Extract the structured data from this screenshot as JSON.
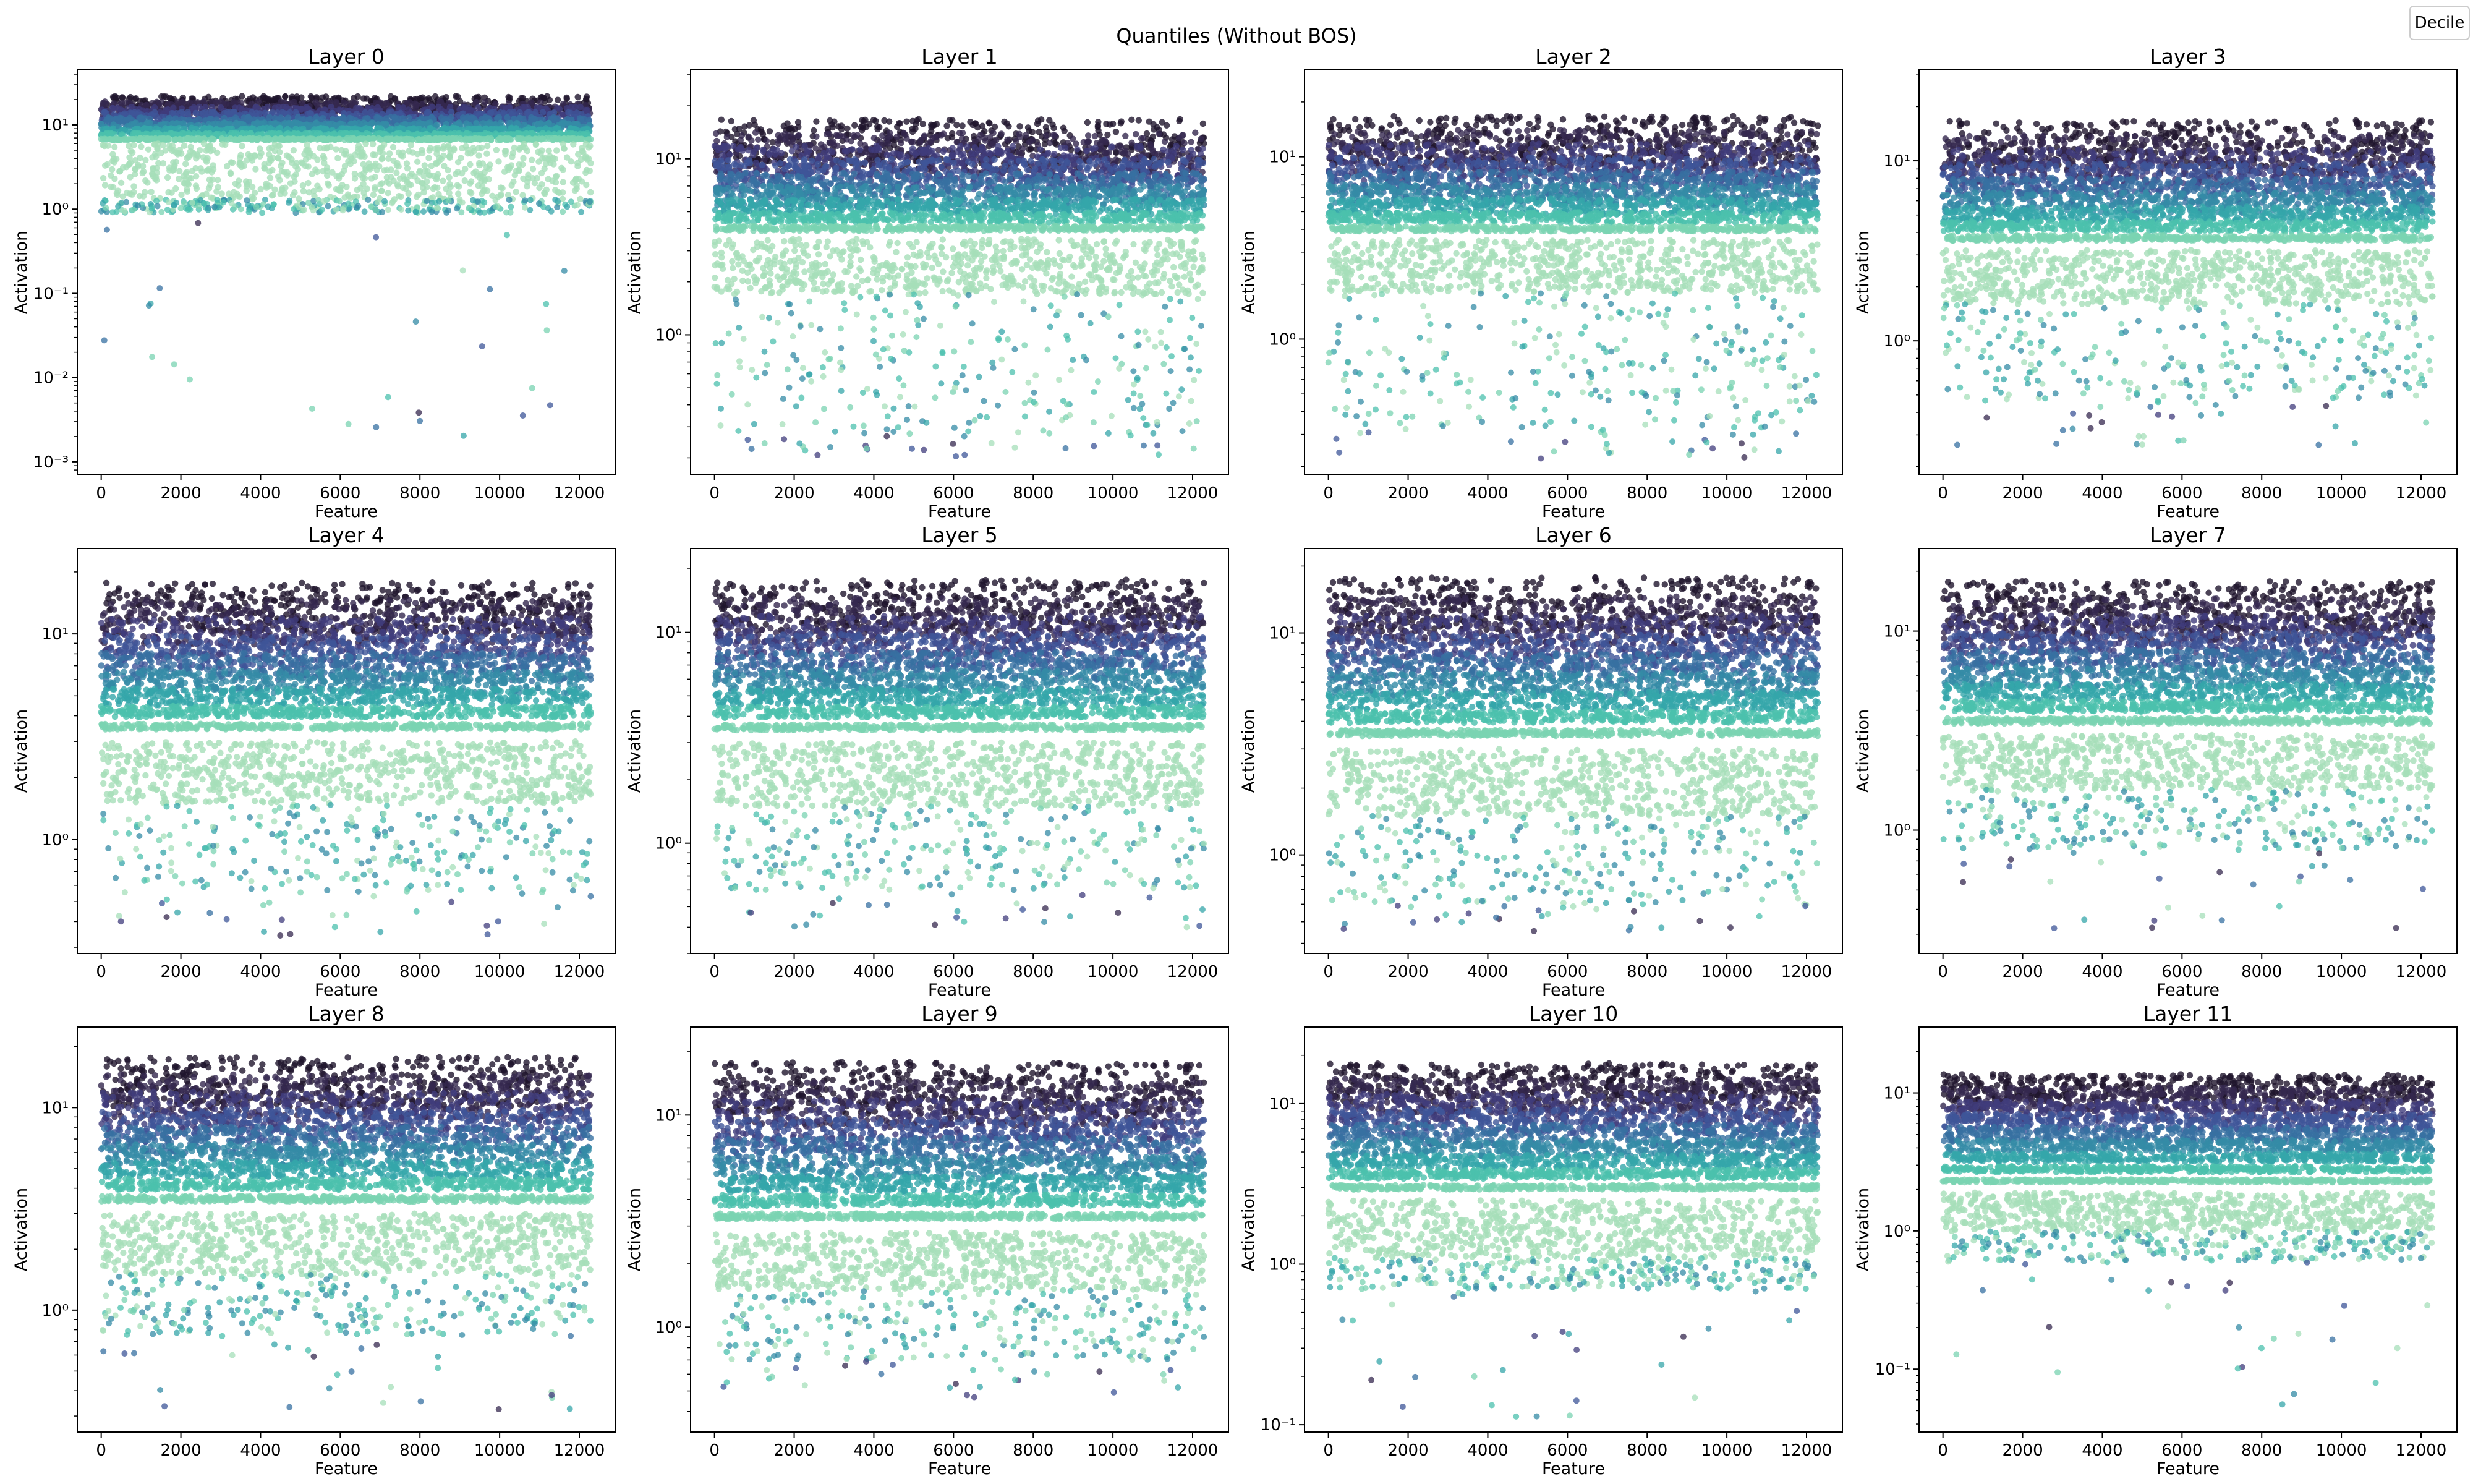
{
  "chart_data": {
    "type": "scatter",
    "suptitle": "Quantiles (Without BOS)",
    "legend": {
      "title": "Decile",
      "placement": "top-right"
    },
    "xlabel": "Feature",
    "ylabel": "Activation",
    "xscale": "linear",
    "yscale": "log",
    "n_features": 12288,
    "xlim": [
      -600,
      12900
    ],
    "x_ticks": [
      0,
      2000,
      4000,
      6000,
      8000,
      10000,
      12000
    ],
    "x_tick_labels": [
      "0",
      "2000",
      "4000",
      "6000",
      "8000",
      "10000",
      "12000"
    ],
    "decile_colors": [
      "#a6dfb9",
      "#7ad3b1",
      "#4bc0ad",
      "#35a6aa",
      "#348ba6",
      "#3770a1",
      "#3e5598",
      "#403c7c",
      "#35284f",
      "#1f152d"
    ],
    "panels": [
      {
        "title": "Layer 0",
        "ylim": [
          0.0007,
          45
        ],
        "y_ticks": [
          0.001,
          0.01,
          0.1,
          1,
          10
        ],
        "y_tick_labels": [
          "10⁻³",
          "10⁻²",
          "10⁻¹",
          "10⁰",
          "10¹"
        ],
        "band_lo": 1.3,
        "band_hi": 6,
        "top_lo": 16,
        "top_hi": 24,
        "bottom_lo": 0.9,
        "outlier_floor": 0.002
      },
      {
        "title": "Layer 1",
        "ylim": [
          0.16,
          32
        ],
        "y_ticks": [
          1,
          10
        ],
        "y_tick_labels": [
          "10⁰",
          "10¹"
        ],
        "band_lo": 1.7,
        "band_hi": 3.5,
        "top_lo": 11,
        "top_hi": 19,
        "bottom_lo": 0.27,
        "outlier_floor": 0.2
      },
      {
        "title": "Layer 2",
        "ylim": [
          0.18,
          30
        ],
        "y_ticks": [
          1,
          10
        ],
        "y_tick_labels": [
          "10⁰",
          "10¹"
        ],
        "band_lo": 1.8,
        "band_hi": 3.5,
        "top_lo": 11,
        "top_hi": 19,
        "bottom_lo": 0.32,
        "outlier_floor": 0.22
      },
      {
        "title": "Layer 3",
        "ylim": [
          0.18,
          32
        ],
        "y_ticks": [
          1,
          10
        ],
        "y_tick_labels": [
          "10⁰",
          "10¹"
        ],
        "band_lo": 1.6,
        "band_hi": 3.2,
        "top_lo": 11,
        "top_hi": 19,
        "bottom_lo": 0.45,
        "outlier_floor": 0.26
      },
      {
        "title": "Layer 4",
        "ylim": [
          0.28,
          26
        ],
        "y_ticks": [
          1,
          10
        ],
        "y_tick_labels": [
          "10⁰",
          "10¹"
        ],
        "band_lo": 1.5,
        "band_hi": 3.0,
        "top_lo": 12,
        "top_hi": 20,
        "bottom_lo": 0.55,
        "outlier_floor": 0.34
      },
      {
        "title": "Layer 5",
        "ylim": [
          0.3,
          25
        ],
        "y_ticks": [
          1,
          10
        ],
        "y_tick_labels": [
          "10⁰",
          "10¹"
        ],
        "band_lo": 1.5,
        "band_hi": 3.0,
        "top_lo": 12,
        "top_hi": 20,
        "bottom_lo": 0.6,
        "outlier_floor": 0.4
      },
      {
        "title": "Layer 6",
        "ylim": [
          0.36,
          24
        ],
        "y_ticks": [
          1,
          10
        ],
        "y_tick_labels": [
          "10⁰",
          "10¹"
        ],
        "band_lo": 1.5,
        "band_hi": 3.0,
        "top_lo": 12,
        "top_hi": 20,
        "bottom_lo": 0.6,
        "outlier_floor": 0.45
      },
      {
        "title": "Layer 7",
        "ylim": [
          0.24,
          26
        ],
        "y_ticks": [
          1,
          10
        ],
        "y_tick_labels": [
          "10⁰",
          "10¹"
        ],
        "band_lo": 1.6,
        "band_hi": 3.0,
        "top_lo": 12,
        "top_hi": 20,
        "bottom_lo": 0.8,
        "outlier_floor": 0.32
      },
      {
        "title": "Layer 8",
        "ylim": [
          0.25,
          25
        ],
        "y_ticks": [
          1,
          10
        ],
        "y_tick_labels": [
          "10⁰",
          "10¹"
        ],
        "band_lo": 1.5,
        "band_hi": 3.0,
        "top_lo": 12,
        "top_hi": 20,
        "bottom_lo": 0.75,
        "outlier_floor": 0.3
      },
      {
        "title": "Layer 9",
        "ylim": [
          0.32,
          26
        ],
        "y_ticks": [
          1,
          10
        ],
        "y_tick_labels": [
          "10⁰",
          "10¹"
        ],
        "band_lo": 1.5,
        "band_hi": 2.8,
        "top_lo": 12,
        "top_hi": 20,
        "bottom_lo": 0.7,
        "outlier_floor": 0.45
      },
      {
        "title": "Layer 10",
        "ylim": [
          0.09,
          30
        ],
        "y_ticks": [
          0.1,
          1,
          10
        ],
        "y_tick_labels": [
          "10⁻¹",
          "10⁰",
          "10¹"
        ],
        "band_lo": 1.1,
        "band_hi": 2.5,
        "top_lo": 12,
        "top_hi": 20,
        "bottom_lo": 0.7,
        "outlier_floor": 0.11
      },
      {
        "title": "Layer 11",
        "ylim": [
          0.035,
          30
        ],
        "y_ticks": [
          0.1,
          1,
          10
        ],
        "y_tick_labels": [
          "10⁻¹",
          "10⁰",
          "10¹"
        ],
        "band_lo": 1.0,
        "band_hi": 1.9,
        "top_lo": 10,
        "top_hi": 15,
        "bottom_lo": 0.6,
        "outlier_floor": 0.045
      }
    ]
  }
}
